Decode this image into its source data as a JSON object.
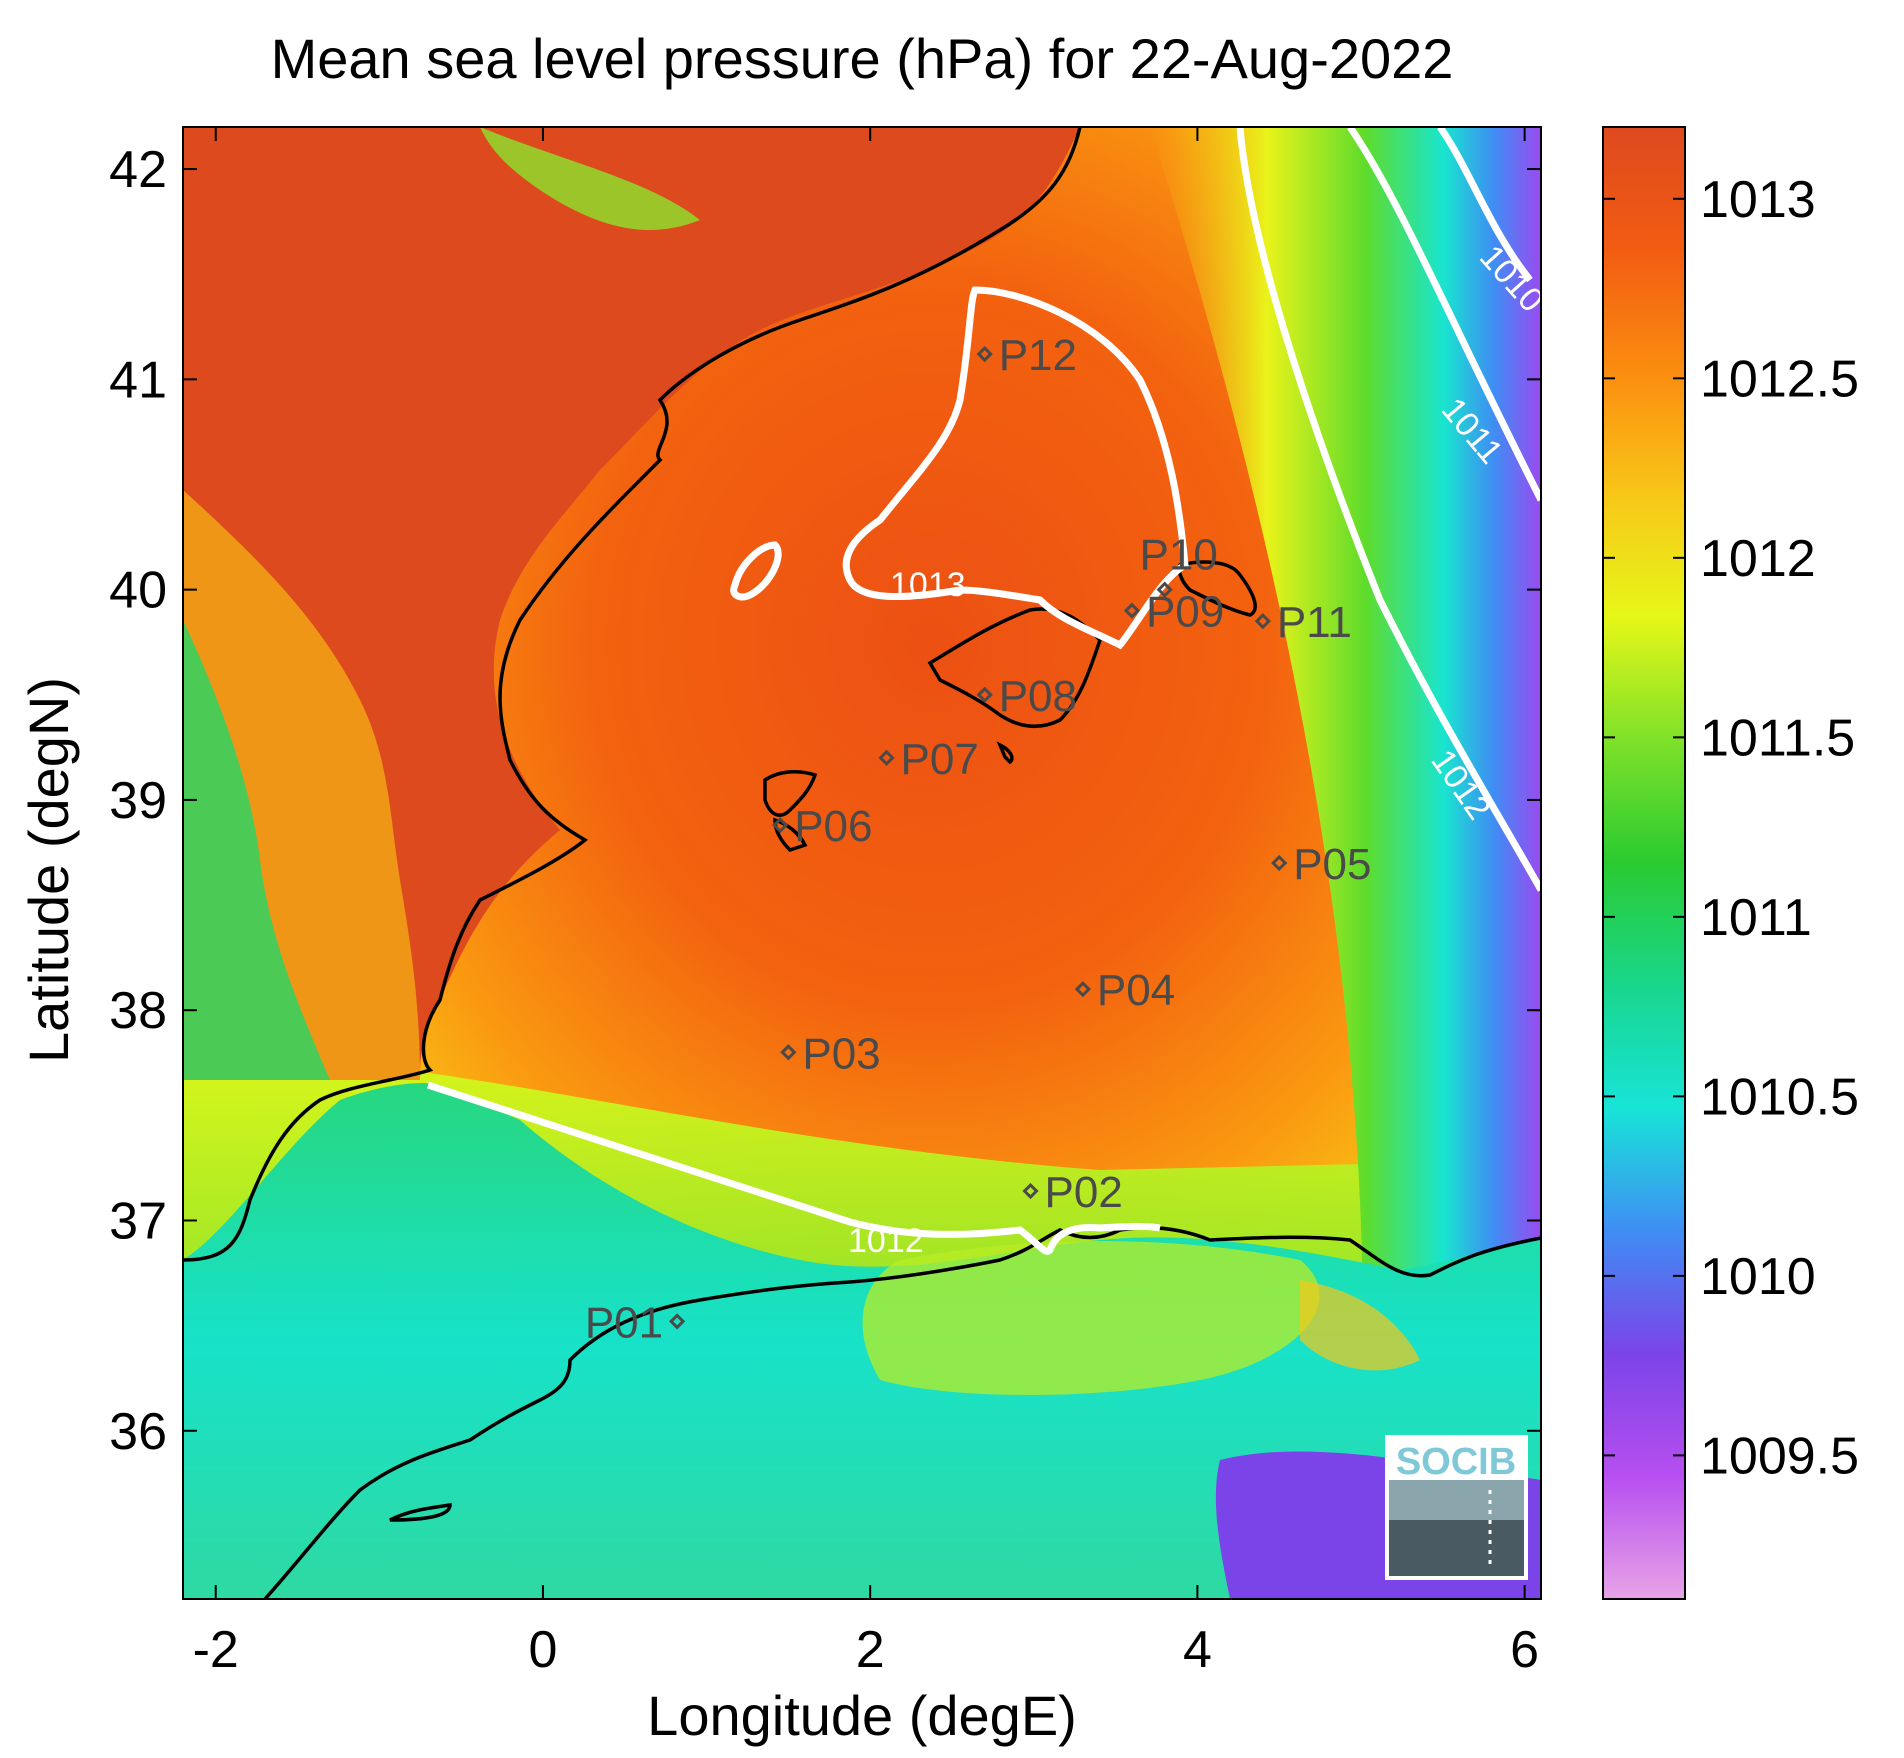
{
  "title": "Mean sea level pressure (hPa) for 22-Aug-2022",
  "xlabel": "Longitude (degE)",
  "ylabel": "Latitude (degN)",
  "logo": "SOCIB",
  "colormap": [
    "#e7a4e7",
    "#b74ff0",
    "#7b44e8",
    "#3f8df4",
    "#18e4d8",
    "#19d68c",
    "#2acb31",
    "#7ee12a",
    "#e6f718",
    "#f8c718",
    "#fb8d10",
    "#f25c12",
    "#de4a1f"
  ],
  "chart_data": {
    "type": "heatmap",
    "title": "Mean sea level pressure (hPa) for 22-Aug-2022",
    "xlabel": "Longitude (degE)",
    "ylabel": "Latitude (degN)",
    "xlim": [
      -2.2,
      6.1
    ],
    "ylim": [
      35.2,
      42.2
    ],
    "x_ticks": [
      "-2",
      "0",
      "2",
      "4",
      "6"
    ],
    "y_ticks": [
      "36",
      "37",
      "38",
      "39",
      "40",
      "41",
      "42"
    ],
    "colorbar": {
      "range": [
        1009.1,
        1013.2
      ],
      "ticks": [
        "1009.5",
        "1010",
        "1010.5",
        "1011",
        "1011.5",
        "1012",
        "1012.5",
        "1013"
      ]
    },
    "contours": [
      {
        "level": "1010",
        "label": "1010"
      },
      {
        "level": "1011",
        "label": "1011"
      },
      {
        "level": "1012",
        "label": "1012"
      },
      {
        "level": "1013",
        "label": "1013"
      }
    ],
    "stations": [
      {
        "name": "P01",
        "lon": 0.82,
        "lat": 36.52
      },
      {
        "name": "P02",
        "lon": 2.98,
        "lat": 37.14
      },
      {
        "name": "P03",
        "lon": 1.5,
        "lat": 37.8
      },
      {
        "name": "P04",
        "lon": 3.3,
        "lat": 38.1
      },
      {
        "name": "P05",
        "lon": 4.5,
        "lat": 38.7
      },
      {
        "name": "P06",
        "lon": 1.45,
        "lat": 38.88
      },
      {
        "name": "P07",
        "lon": 2.1,
        "lat": 39.2
      },
      {
        "name": "P08",
        "lon": 2.7,
        "lat": 39.5
      },
      {
        "name": "P09",
        "lon": 3.6,
        "lat": 39.9
      },
      {
        "name": "P10",
        "lon": 3.8,
        "lat": 40.0
      },
      {
        "name": "P11",
        "lon": 4.4,
        "lat": 39.85
      },
      {
        "name": "P12",
        "lon": 2.7,
        "lat": 41.12
      }
    ]
  }
}
